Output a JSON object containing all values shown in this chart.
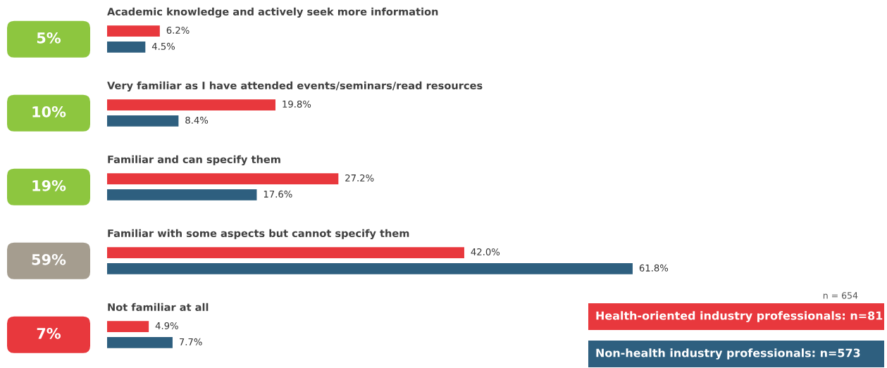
{
  "chart_data": {
    "type": "bar",
    "orientation": "horizontal",
    "categories": [
      "Academic knowledge and actively seek more information",
      "Very familiar as I have attended events/seminars/read resources",
      "Familiar and can specify them",
      "Familiar with some aspects but cannot specify them",
      "Not familiar at all"
    ],
    "series": [
      {
        "name": "Health-oriented industry professionals: n=81",
        "color": "#e8383d",
        "values": [
          6.2,
          19.8,
          27.2,
          42.0,
          4.9
        ],
        "value_labels": [
          "6.2%",
          "19.8%",
          "27.2%",
          "42.0%",
          "4.9%"
        ]
      },
      {
        "name": "Non-health industry professionals: n=573",
        "color": "#2e5f7f",
        "values": [
          4.5,
          8.4,
          17.6,
          61.8,
          7.7
        ],
        "value_labels": [
          "4.5%",
          "8.4%",
          "17.6%",
          "61.8%",
          "7.7%"
        ]
      }
    ],
    "annotations": [
      "5%",
      "10%",
      "19%",
      "59%",
      "7%",
      "n = 654"
    ],
    "legend": "bottom right"
  }
}
